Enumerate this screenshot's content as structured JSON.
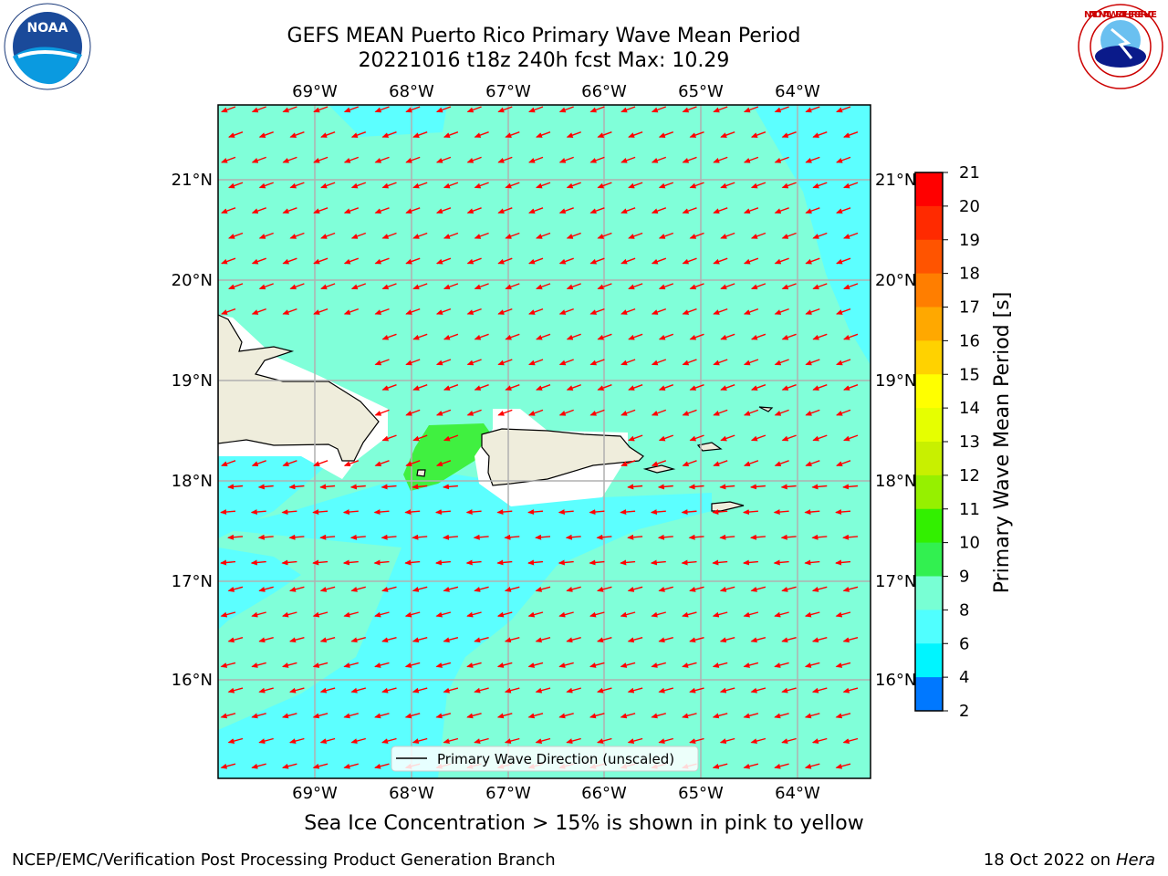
{
  "title_line1": "GEFS MEAN Puerto Rico Primary Wave Mean Period",
  "title_line2": "20221016 t18z 240h fcst   Max: 10.29",
  "lon_labels": [
    "69°W",
    "68°W",
    "67°W",
    "66°W",
    "65°W",
    "64°W"
  ],
  "lat_labels": [
    "21°N",
    "20°N",
    "19°N",
    "18°N",
    "17°N",
    "16°N"
  ],
  "colorbar": {
    "label": "Primary Wave Mean Period [s]",
    "ticks": [
      "21",
      "20",
      "19",
      "18",
      "17",
      "16",
      "15",
      "14",
      "13",
      "12",
      "11",
      "10",
      "9",
      "8",
      "6",
      "4",
      "2"
    ],
    "colors": [
      "#ff0000",
      "#ff2a00",
      "#ff5400",
      "#ff7e00",
      "#ffa800",
      "#ffd200",
      "#ffff00",
      "#e6ff00",
      "#c8f000",
      "#96f000",
      "#32f000",
      "#32f050",
      "#78ffd4",
      "#50ffff",
      "#00f5ff",
      "#0078ff",
      "#0000ff"
    ]
  },
  "legend_label": "Primary Wave Direction (unscaled)",
  "ice_note": "Sea Ice Concentration > 15% is shown in pink to yellow",
  "footer_left": "NCEP/EMC/Verification Post Processing Product Generation Branch",
  "footer_date": "18 Oct 2022 on",
  "footer_machine": "Hera",
  "logos": {
    "left": "NOAA",
    "right": "NATIONAL WEATHER SERVICE"
  },
  "colors": {
    "field_aqua": "#80ffd9",
    "field_cyan": "#5cffff",
    "field_green": "#40f040",
    "land": "#efeddc",
    "arrow": "#ff0000",
    "grid": "#b0b0b0"
  }
}
